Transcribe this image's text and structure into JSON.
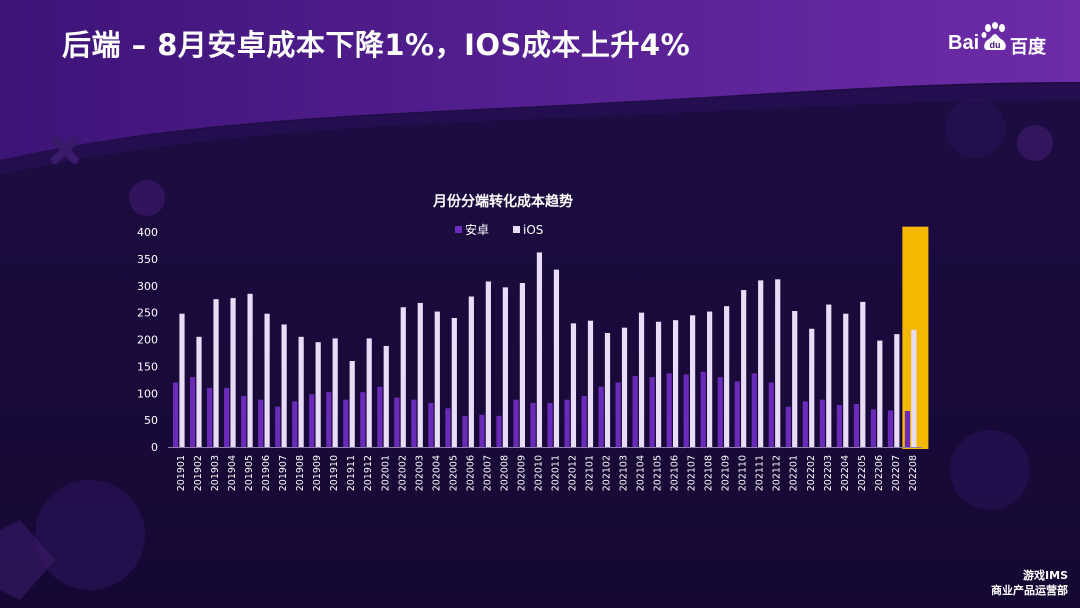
{
  "header": {
    "title": "后端 – 8月安卓成本下降1%，IOS成本上升4%",
    "logo_en": "Bai",
    "logo_cn": "百度",
    "logo_icon": "baidu-paw-icon"
  },
  "footer": {
    "line1": "游戏IMS",
    "line2": "商业产品运营部"
  },
  "colors": {
    "android": "#6a2bb8",
    "ios": "#e9dcf7",
    "highlight": "#f5b800",
    "axis_text": "#ffffff"
  },
  "chart_data": {
    "type": "bar",
    "title": "月份分端转化成本趋势",
    "legend_position": "top",
    "ylim": [
      0,
      400
    ],
    "yticks": [
      0,
      50,
      100,
      150,
      200,
      250,
      300,
      350,
      400
    ],
    "grid": false,
    "highlight_category": "202208",
    "categories": [
      "201901",
      "201902",
      "201903",
      "201904",
      "201905",
      "201906",
      "201907",
      "201908",
      "201909",
      "201910",
      "201911",
      "201912",
      "202001",
      "202002",
      "202003",
      "202004",
      "202005",
      "202006",
      "202007",
      "202008",
      "202009",
      "202010",
      "202011",
      "202012",
      "202101",
      "202102",
      "202103",
      "202104",
      "202105",
      "202106",
      "202107",
      "202108",
      "202109",
      "202110",
      "202111",
      "202112",
      "202201",
      "202202",
      "202203",
      "202204",
      "202205",
      "202206",
      "202207",
      "202208"
    ],
    "series": [
      {
        "name": "安卓",
        "values": [
          120,
          130,
          110,
          110,
          95,
          88,
          75,
          85,
          98,
          102,
          88,
          102,
          112,
          92,
          88,
          82,
          72,
          58,
          60,
          58,
          88,
          82,
          82,
          88,
          95,
          112,
          120,
          132,
          130,
          137,
          135,
          140,
          130,
          122,
          137,
          120,
          75,
          85,
          88,
          78,
          80,
          70,
          68,
          67
        ]
      },
      {
        "name": "iOS",
        "values": [
          248,
          205,
          275,
          277,
          285,
          248,
          228,
          205,
          195,
          202,
          160,
          202,
          188,
          260,
          268,
          252,
          240,
          280,
          308,
          297,
          305,
          362,
          330,
          230,
          235,
          212,
          222,
          250,
          233,
          236,
          245,
          252,
          262,
          292,
          310,
          312,
          253,
          220,
          265,
          248,
          270,
          198,
          210,
          218
        ]
      }
    ]
  }
}
